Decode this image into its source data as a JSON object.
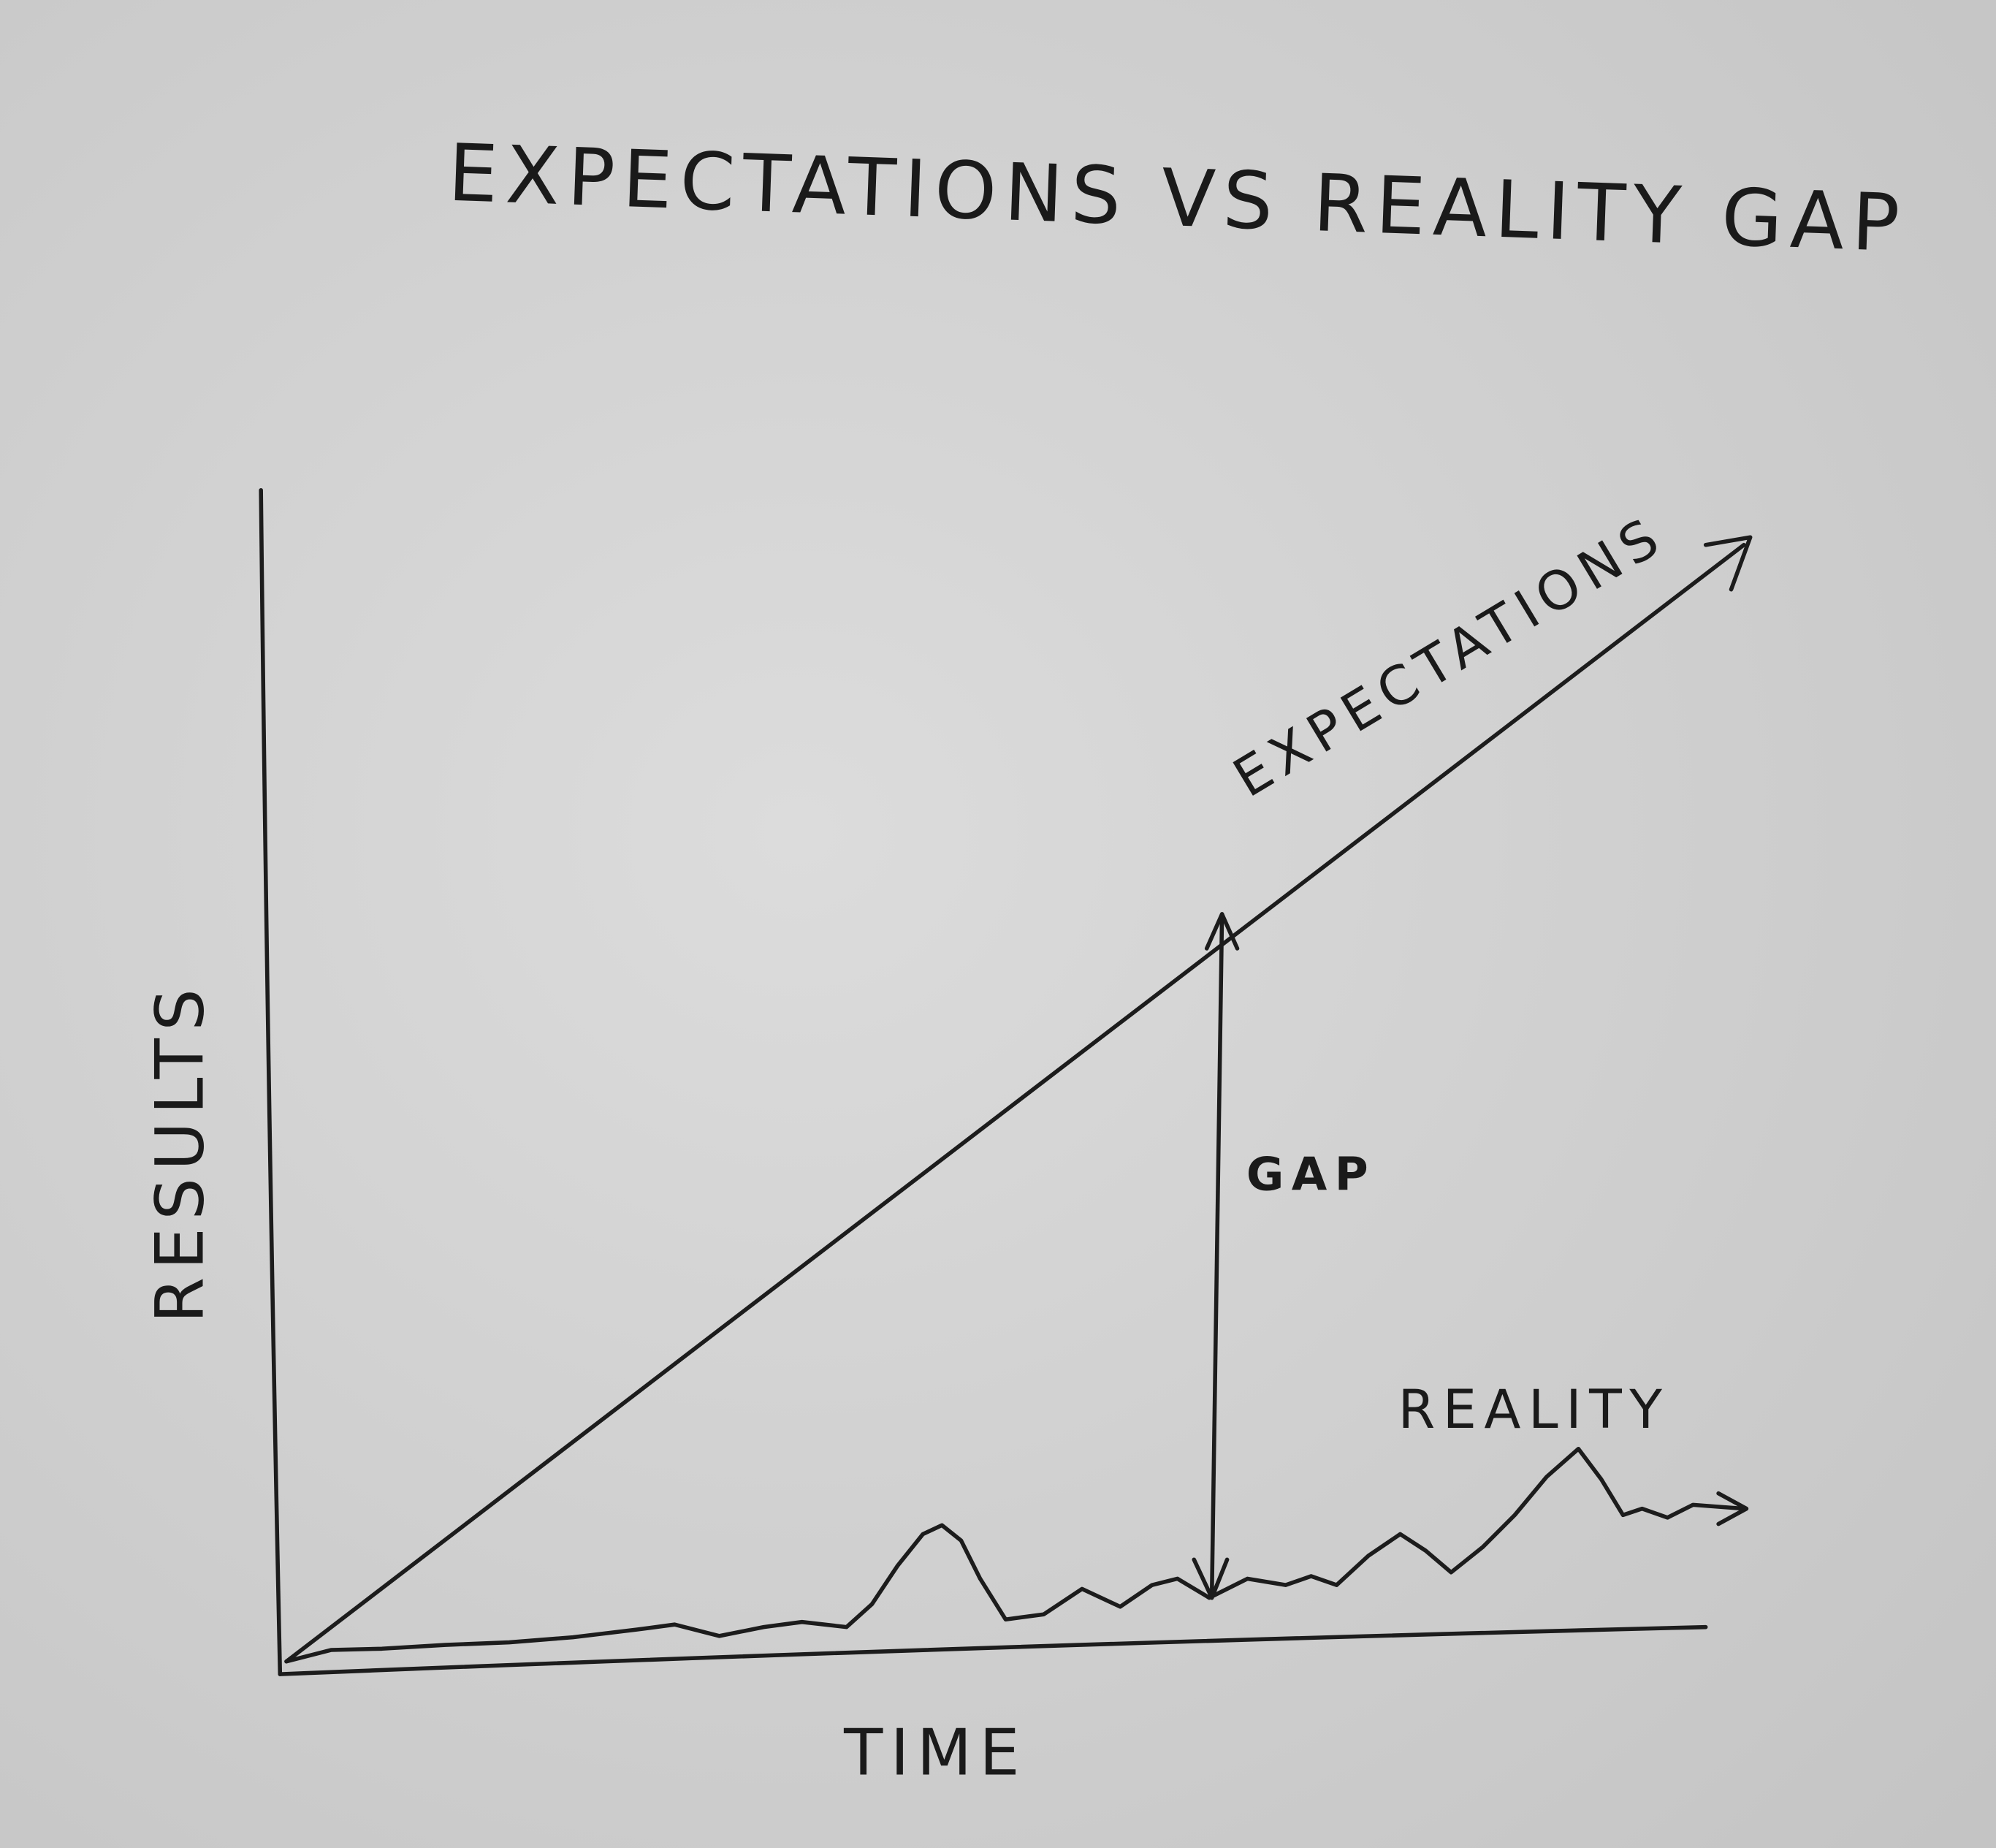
{
  "title": "EXPECTATIONS VS REALITY GAP",
  "y_axis_label": "RESULTS",
  "x_axis_label": "TIME",
  "labels": {
    "expectations": "EXPECTATIONS",
    "reality": "REALITY",
    "gap": "GAP"
  }
}
